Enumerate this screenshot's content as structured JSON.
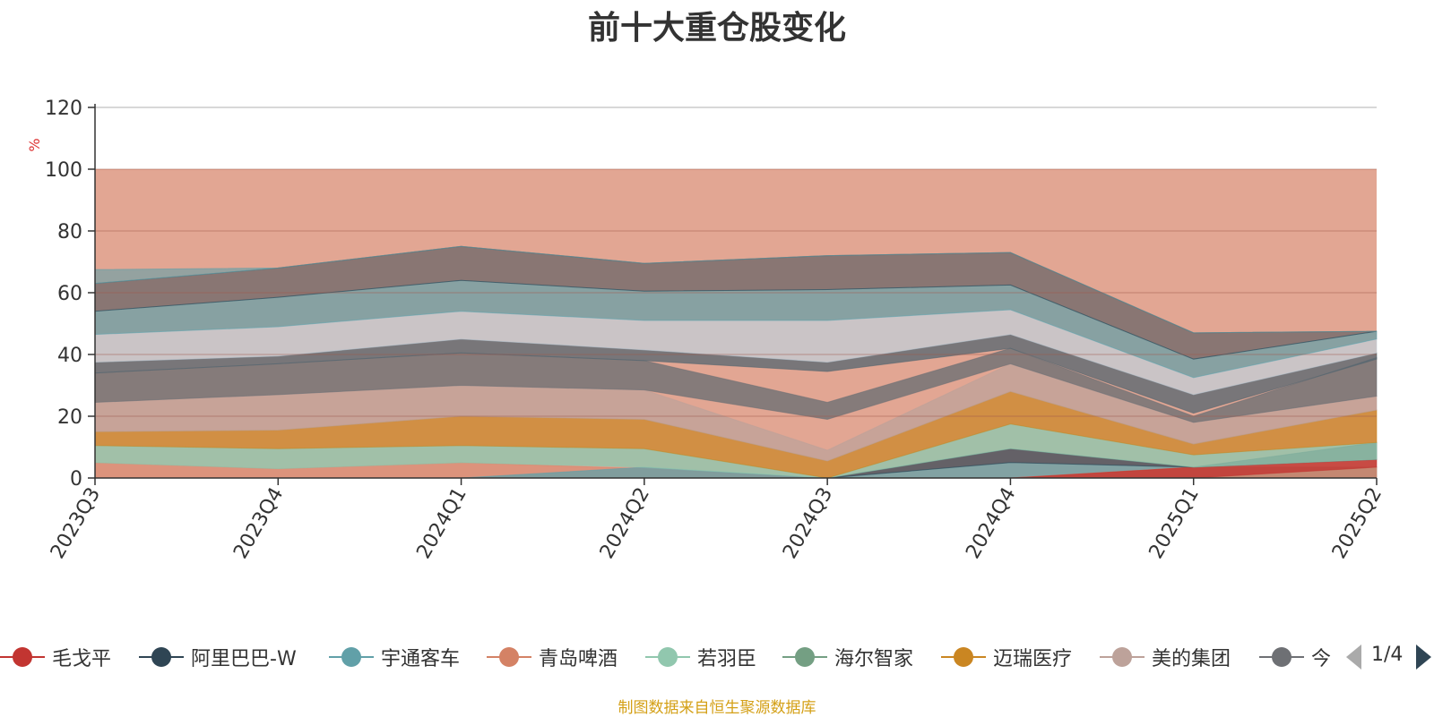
{
  "chart_data": {
    "type": "area",
    "title": "前十大重仓股变化",
    "ylabel": "%",
    "ylim": [
      0,
      120
    ],
    "yticks": [
      0,
      20,
      40,
      60,
      80,
      100,
      120
    ],
    "categories": [
      "2023Q3",
      "2023Q4",
      "2024Q1",
      "2024Q2",
      "2024Q3",
      "2024Q4",
      "2025Q1",
      "2025Q2"
    ],
    "grid": true,
    "background_band": {
      "from": 0,
      "to": 100,
      "color": "#d7836a"
    },
    "layers": [
      {
        "color": "#d7836a",
        "opacity": 0.55,
        "bottom": [
          0,
          0,
          0,
          0,
          0,
          0,
          0,
          0
        ],
        "top": [
          5,
          3,
          5,
          3,
          0,
          0,
          0,
          0
        ]
      },
      {
        "color": "#61a0a8",
        "opacity": 0.75,
        "bottom": [
          0,
          0,
          0,
          0,
          0,
          0,
          0,
          0
        ],
        "top": [
          0,
          0,
          0,
          3.5,
          0,
          5,
          3.5,
          3.5
        ]
      },
      {
        "color": "#d48265",
        "opacity": 0.8,
        "bottom": [
          0,
          0,
          0,
          0,
          0,
          0,
          0,
          0
        ],
        "top": [
          0,
          0,
          0,
          0,
          0,
          0,
          3.5,
          3.5
        ]
      },
      {
        "color": "#c23531",
        "opacity": 0.8,
        "bottom": [
          0,
          0,
          0,
          0,
          0,
          0,
          0,
          3.5
        ],
        "top": [
          0,
          0,
          0,
          0,
          0,
          0,
          3.5,
          6
        ]
      },
      {
        "color": "#2f4554",
        "opacity": 0.7,
        "bottom": [
          0,
          0,
          0,
          0,
          0,
          5,
          3.5,
          6
        ],
        "top": [
          0,
          0,
          0,
          0,
          0,
          9.5,
          3.5,
          11.5
        ]
      },
      {
        "color": "#91c7ae",
        "opacity": 0.8,
        "bottom": [
          5,
          3,
          5,
          3.5,
          0,
          9.5,
          3.5,
          6
        ],
        "top": [
          10.5,
          9.5,
          10.5,
          9.5,
          0,
          17.5,
          7.5,
          11.5
        ]
      },
      {
        "color": "#ca8622",
        "opacity": 0.7,
        "bottom": [
          10.5,
          9.5,
          10.5,
          9.5,
          0,
          17.5,
          7.5,
          11.5
        ],
        "top": [
          15,
          15.5,
          20,
          19,
          5.5,
          28,
          11,
          22
        ]
      },
      {
        "color": "#bda29a",
        "opacity": 0.75,
        "bottom": [
          15,
          15.5,
          20,
          19,
          5.5,
          28,
          11,
          22
        ],
        "top": [
          24.5,
          27,
          30,
          28.5,
          9,
          37,
          18,
          26.5
        ]
      },
      {
        "color": "#6e7074",
        "opacity": 0.8,
        "bottom": [
          24.5,
          27,
          30,
          28.5,
          19,
          37,
          18,
          26.5
        ],
        "top": [
          34,
          37,
          40.5,
          38,
          24.5,
          42,
          20,
          39
        ]
      },
      {
        "color": "#546570",
        "opacity": 0.75,
        "bottom": [
          34,
          37,
          40.5,
          38,
          34.5,
          42,
          21,
          38.5
        ],
        "top": [
          37.5,
          39.5,
          45,
          41.5,
          37.5,
          46.5,
          27,
          40.5
        ]
      },
      {
        "color": "#c4ccd3",
        "opacity": 0.8,
        "bottom": [
          37.5,
          39.5,
          45,
          41.5,
          37.5,
          46.5,
          27,
          40.5
        ],
        "top": [
          46.5,
          49,
          54,
          51,
          51,
          54.5,
          32.5,
          45
        ]
      },
      {
        "color": "#61a0a8",
        "opacity": 0.7,
        "bottom": [
          46.5,
          49,
          54,
          51,
          51,
          54.5,
          32.5,
          45
        ],
        "top": [
          54,
          58.5,
          64,
          60.5,
          61,
          62.5,
          38.5,
          47.5
        ]
      },
      {
        "color": "#2f4554",
        "opacity": 0.5,
        "bottom": [
          54,
          58.5,
          64,
          60.5,
          61,
          62.5,
          38.5,
          47.5
        ],
        "top": [
          63,
          68,
          75,
          69.5,
          72,
          73,
          47,
          47.5
        ]
      },
      {
        "color": "#61a0a8",
        "opacity": 0.6,
        "bottom": [
          63,
          68,
          75,
          69.5,
          72,
          73,
          47,
          47.5
        ],
        "top": [
          67.5,
          68,
          75,
          69.5,
          72,
          73,
          47,
          47.5
        ]
      }
    ],
    "legend": {
      "placement": "bottom",
      "page": "1/4",
      "entries": [
        {
          "name": "毛戈平",
          "color": "#c23531"
        },
        {
          "name": "阿里巴巴-W",
          "color": "#2f4554"
        },
        {
          "name": "宇通客车",
          "color": "#61a0a8"
        },
        {
          "name": "青岛啤酒",
          "color": "#d48265"
        },
        {
          "name": "若羽臣",
          "color": "#91c7ae"
        },
        {
          "name": "海尔智家",
          "color": "#749f83"
        },
        {
          "name": "迈瑞医疗",
          "color": "#ca8622"
        },
        {
          "name": "美的集团",
          "color": "#bda29a"
        },
        {
          "name": "今",
          "color": "#6e7074"
        }
      ]
    },
    "source_note": "制图数据来自恒生聚源数据库"
  }
}
